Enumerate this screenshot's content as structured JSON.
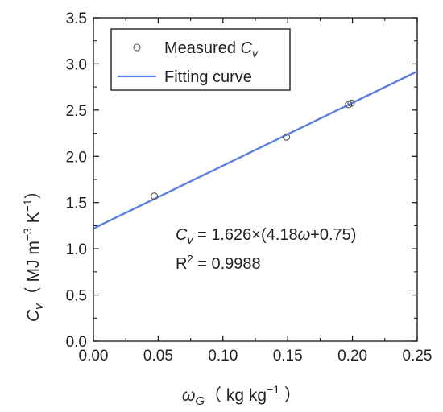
{
  "chart_data": {
    "type": "scatter",
    "title": "",
    "xlabel": {
      "symbol": "ω",
      "sub": "G",
      "unit_pre": "（ kg kg",
      "unit_sup": "−1",
      "unit_post": " ）"
    },
    "ylabel": {
      "symbol": "C",
      "sub": "v",
      "unit_pre": "（ MJ m",
      "unit_sup1": "−3",
      "unit_mid": " K",
      "unit_sup2": "−1",
      "unit_post": "）"
    },
    "xlim": [
      0,
      0.25
    ],
    "ylim": [
      0,
      3.5
    ],
    "x_ticks": [
      "0.00",
      "0.05",
      "0.10",
      "0.15",
      "0.20",
      "0.25"
    ],
    "y_ticks": [
      "0.0",
      "0.5",
      "1.0",
      "1.5",
      "2.0",
      "2.5",
      "3.0",
      "3.5"
    ],
    "grid": false,
    "legend_position": "top-left",
    "legend": {
      "measured": {
        "prefix": "Measured ",
        "symbol": "C",
        "sub": "v"
      },
      "fit": "Fitting curve"
    },
    "series": [
      {
        "kind": "scatter",
        "color": "#555555",
        "points": [
          {
            "x": 0.047,
            "y": 1.57
          },
          {
            "x": 0.149,
            "y": 2.21
          },
          {
            "x": 0.197,
            "y": 2.56
          },
          {
            "x": 0.199,
            "y": 2.575
          }
        ]
      },
      {
        "kind": "line",
        "color": "#5b7fe0",
        "coefficients": {
          "a": 1.626,
          "b": 4.18,
          "c": 0.75
        },
        "x": [
          0,
          0.25
        ]
      }
    ],
    "annotation": {
      "equation": {
        "symbol": "C",
        "sub": "v",
        "rhs_pre": " = 1.626×(4.18",
        "omega": "ω",
        "rhs_post": "+0.75)"
      },
      "r2": {
        "base": "R",
        "sup": "2",
        "rest": " = 0.9988"
      }
    }
  }
}
